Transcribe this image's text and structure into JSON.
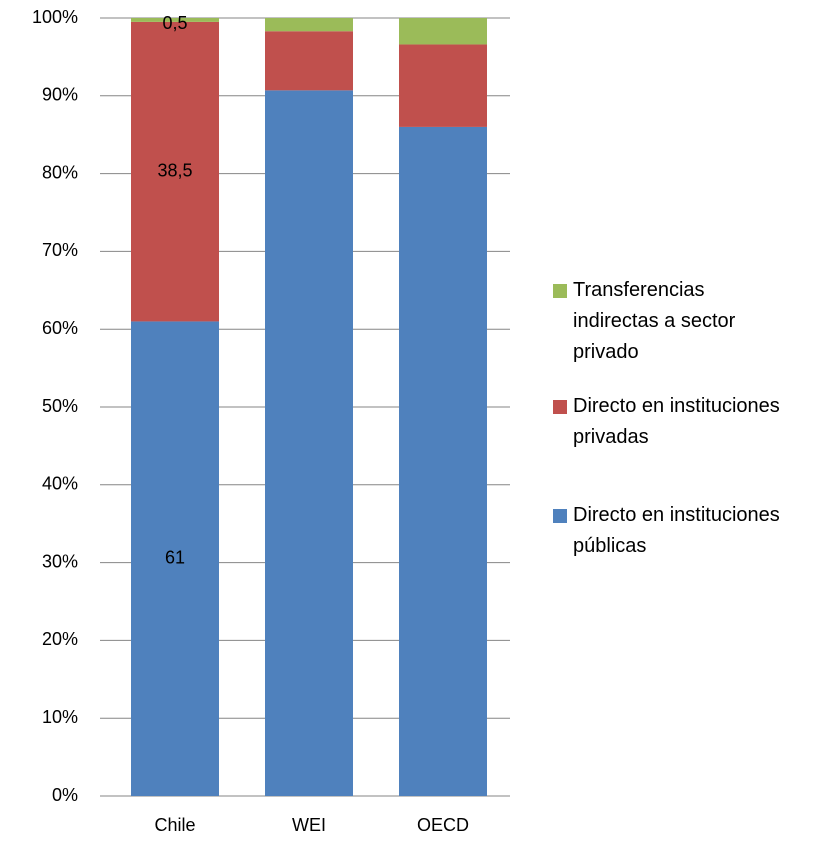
{
  "chart_data": {
    "type": "stacked_bar",
    "categories": [
      "Chile",
      "WEI",
      "OECD"
    ],
    "series": [
      {
        "name": "Directo en instituciones públicas",
        "color": "#4f81bd",
        "values": [
          61,
          90.7,
          86
        ],
        "value_labels": [
          "61",
          null,
          null
        ]
      },
      {
        "name": "Directo en instituciones privadas",
        "color": "#c0504d",
        "values": [
          38.5,
          7.6,
          10.6
        ],
        "value_labels": [
          "38,5",
          null,
          null
        ]
      },
      {
        "name": "Transferencias indirectas a sector privado",
        "color": "#9bbb59",
        "values": [
          0.5,
          1.7,
          3.4
        ],
        "value_labels": [
          "0,5",
          null,
          null
        ]
      }
    ],
    "ylim": [
      0,
      100
    ],
    "yticks": [
      {
        "value": 0,
        "label": "0%"
      },
      {
        "value": 10,
        "label": "10%"
      },
      {
        "value": 20,
        "label": "20%"
      },
      {
        "value": 30,
        "label": "30%"
      },
      {
        "value": 40,
        "label": "40%"
      },
      {
        "value": 50,
        "label": "50%"
      },
      {
        "value": 60,
        "label": "60%"
      },
      {
        "value": 70,
        "label": "70%"
      },
      {
        "value": 80,
        "label": "80%"
      },
      {
        "value": 90,
        "label": "90%"
      },
      {
        "value": 100,
        "label": "100%"
      }
    ],
    "grid": true,
    "legend": "right"
  }
}
